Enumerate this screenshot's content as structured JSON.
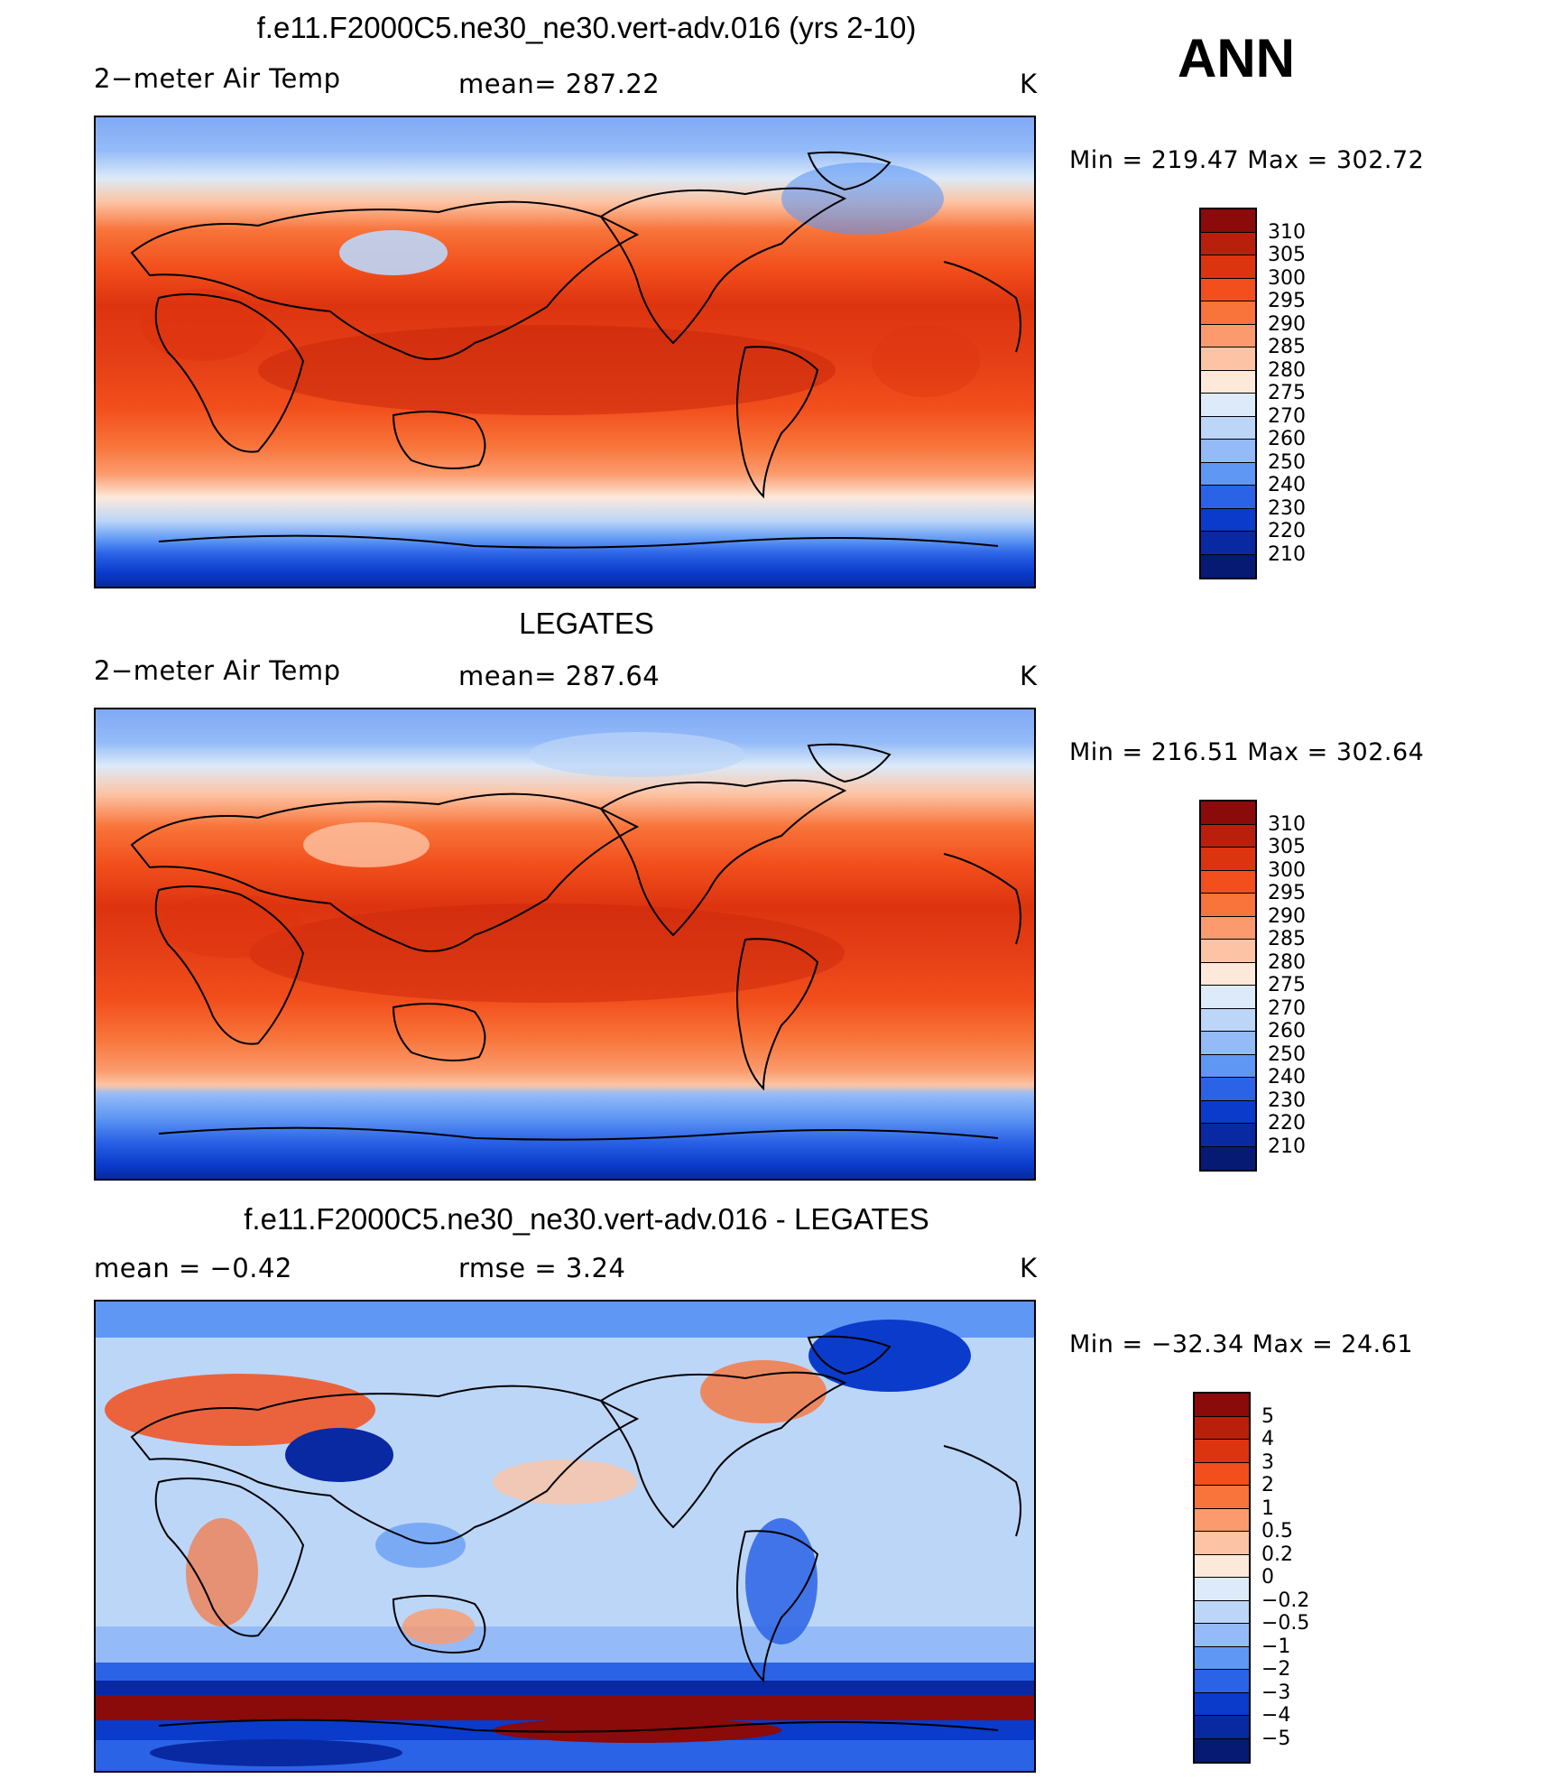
{
  "season_label": "ANN",
  "panels": [
    {
      "title": "f.e11.F2000C5.ne30_ne30.vert-adv.016 (yrs 2-10)",
      "left_label": "2−meter Air Temp",
      "center_label": "mean=  287.22",
      "units": "K",
      "minmax": "Min  =  219.47  Max  =  302.72"
    },
    {
      "title": "LEGATES",
      "left_label": "2−meter Air Temp",
      "center_label": "mean=  287.64",
      "units": "K",
      "minmax": "Min  =  216.51  Max  =  302.64"
    },
    {
      "title": "f.e11.F2000C5.ne30_ne30.vert-adv.016 - LEGATES",
      "left_label": "mean  =     −0.42",
      "center_label": "rmse  =      3.24",
      "units": "K",
      "minmax": "Min  =  −32.34  Max  =    24.61"
    }
  ],
  "colorbars": [
    {
      "labels": [
        "310",
        "305",
        "300",
        "295",
        "290",
        "285",
        "280",
        "275",
        "270",
        "260",
        "250",
        "240",
        "230",
        "220",
        "210"
      ],
      "colors": [
        "#8b0a0a",
        "#b8200c",
        "#dd3410",
        "#f24f1c",
        "#f8743a",
        "#fb9b6d",
        "#fcc4a4",
        "#fde9da",
        "#dceaf9",
        "#bcd6f8",
        "#94bbf8",
        "#5f97f4",
        "#2b63e6",
        "#0a3bcb",
        "#0829a2",
        "#061a74"
      ]
    },
    {
      "labels": [
        "310",
        "305",
        "300",
        "295",
        "290",
        "285",
        "280",
        "275",
        "270",
        "260",
        "250",
        "240",
        "230",
        "220",
        "210"
      ],
      "colors": [
        "#8b0a0a",
        "#b8200c",
        "#dd3410",
        "#f24f1c",
        "#f8743a",
        "#fb9b6d",
        "#fcc4a4",
        "#fde9da",
        "#dceaf9",
        "#bcd6f8",
        "#94bbf8",
        "#5f97f4",
        "#2b63e6",
        "#0a3bcb",
        "#0829a2",
        "#061a74"
      ]
    },
    {
      "labels": [
        "5",
        "4",
        "3",
        "2",
        "1",
        "0.5",
        "0.2",
        "0",
        "−0.2",
        "−0.5",
        "−1",
        "−2",
        "−3",
        "−4",
        "−5"
      ],
      "colors": [
        "#8b0a0a",
        "#b8200c",
        "#dd3410",
        "#f24f1c",
        "#f8743a",
        "#fb9b6d",
        "#fcc4a4",
        "#fde9da",
        "#dceaf9",
        "#bcd6f8",
        "#94bbf8",
        "#5f97f4",
        "#2b63e6",
        "#0a3bcb",
        "#0829a2",
        "#061a74"
      ]
    }
  ]
}
